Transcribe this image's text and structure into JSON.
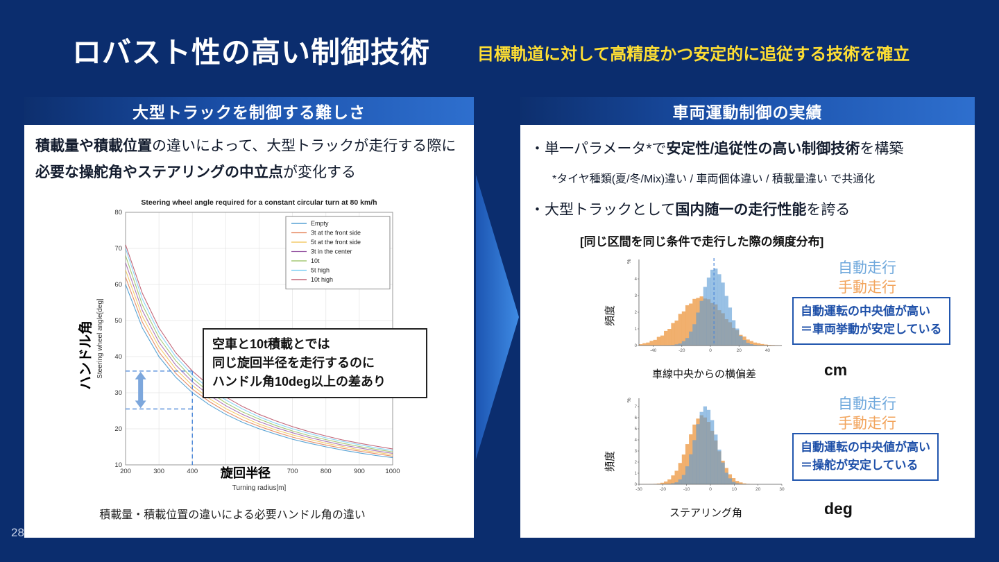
{
  "slide": {
    "title": "ロバスト性の高い制御技術",
    "subtitle": "目標軌道に対して高精度かつ安定的に追従する技術を確立",
    "page_number": "28"
  },
  "colors": {
    "background": "#0b2d6e",
    "header_gradient_start": "#0d2f6e",
    "header_gradient_end": "#2e6fce",
    "subtitle_yellow": "#ffdf33",
    "auto_drive_blue": "#6fa8dc",
    "manual_drive_orange": "#f2a45c",
    "annotation_blue": "#1d4fa8"
  },
  "left_panel": {
    "header": "大型トラックを制御する難しさ",
    "body_segments": [
      {
        "text": "積載量や積載位置",
        "bold": true
      },
      {
        "text": "の違いによって、大型トラックが走行する際に",
        "bold": false
      },
      {
        "text": "必要な操舵角やステアリングの中立点",
        "bold": true
      },
      {
        "text": "が変化する",
        "bold": false
      }
    ],
    "axis_label_y": "ハンドル角",
    "axis_label_x": "旋回半径",
    "annotation_lines": [
      "空車と10t積載とでは",
      "同じ旋回半径を走行するのに",
      "ハンドル角10deg以上の差あり"
    ],
    "caption": "積載量・積載位置の違いによる必要ハンドル角の違い"
  },
  "right_panel": {
    "header": "車両運動制御の実績",
    "bullet1_segments": [
      {
        "text": "・単一パラメータ*で",
        "bold": false
      },
      {
        "text": "安定性/追従性の高い制御技術",
        "bold": true
      },
      {
        "text": "を構築",
        "bold": false
      }
    ],
    "note": "*タイヤ種類(夏/冬/Mix)違い / 車両個体違い / 積載量違い で共通化",
    "bullet2_segments": [
      {
        "text": "・大型トラックとして",
        "bold": false
      },
      {
        "text": "国内随一の走行性能",
        "bold": true
      },
      {
        "text": "を誇る",
        "bold": false
      }
    ],
    "dist_caption": "[同じ区間を同じ条件で走行した際の頻度分布]",
    "legend_auto": "自動走行",
    "legend_manual": "手動走行",
    "freq_label": "頻度",
    "hist1_xlabel": "車線中央からの横偏差",
    "hist1_unit": "cm",
    "hist2_xlabel": "ステアリング角",
    "hist2_unit": "deg",
    "annotation1_lines": [
      "自動運転の中央値が高い",
      "＝車両挙動が安定している"
    ],
    "annotation2_lines": [
      "自動運転の中央値が高い",
      "＝操舵が安定している"
    ]
  },
  "chart_data": [
    {
      "type": "line",
      "title": "Steering wheel angle required for a constant circular turn at 80 km/h",
      "xlabel": "Turning radius[m]",
      "ylabel": "Steering wheel angle[deg]",
      "xlim": [
        200,
        1000
      ],
      "ylim": [
        10,
        80
      ],
      "x_ticks": [
        200,
        300,
        400,
        500,
        600,
        700,
        800,
        900,
        1000
      ],
      "y_ticks": [
        10,
        20,
        30,
        40,
        50,
        60,
        70,
        80
      ],
      "x": [
        200,
        250,
        300,
        350,
        400,
        450,
        500,
        550,
        600,
        650,
        700,
        750,
        800,
        850,
        900,
        950,
        1000
      ],
      "series": [
        {
          "name": "Empty",
          "color": "#0072BD",
          "values": [
            60,
            48,
            40,
            34.3,
            30,
            26.7,
            24,
            21.8,
            20,
            18.5,
            17.1,
            16,
            15,
            14.1,
            13.3,
            12.6,
            12
          ]
        },
        {
          "name": "3t at the front side",
          "color": "#D95319",
          "values": [
            62,
            49.6,
            41.3,
            35.4,
            31,
            27.6,
            24.8,
            22.5,
            20.7,
            19.1,
            17.7,
            16.5,
            15.5,
            14.6,
            13.8,
            13.1,
            12.4
          ]
        },
        {
          "name": "5t at the front side",
          "color": "#EDB120",
          "values": [
            64,
            51.2,
            42.7,
            36.6,
            32,
            28.4,
            25.6,
            23.3,
            21.3,
            19.7,
            18.3,
            17.1,
            16,
            15.1,
            14.2,
            13.5,
            12.8
          ]
        },
        {
          "name": "3t in the center",
          "color": "#7E2F8E",
          "values": [
            66,
            52.8,
            44,
            37.7,
            33,
            29.3,
            26.4,
            24,
            22,
            20.3,
            18.9,
            17.6,
            16.5,
            15.5,
            14.7,
            13.9,
            13.2
          ]
        },
        {
          "name": "10t",
          "color": "#77AC30",
          "values": [
            68,
            54.4,
            45.3,
            38.9,
            34,
            30.2,
            27.2,
            24.7,
            22.7,
            20.9,
            19.4,
            18.1,
            17,
            16,
            15.1,
            14.3,
            13.6
          ]
        },
        {
          "name": "5t high",
          "color": "#4DBEEE",
          "values": [
            70,
            56,
            46.7,
            40,
            35,
            31.1,
            28,
            25.5,
            23.3,
            21.5,
            20,
            18.7,
            17.5,
            16.5,
            15.6,
            14.7,
            14
          ]
        },
        {
          "name": "10t high",
          "color": "#A2142F",
          "values": [
            71,
            57.6,
            48,
            41.1,
            36,
            32,
            28.8,
            26.2,
            24,
            22.2,
            20.6,
            19.2,
            18,
            16.9,
            16,
            15.2,
            14.4
          ]
        }
      ],
      "legend_position": "top-right",
      "grid": true,
      "guides": {
        "radius": 400,
        "angle_high": 36,
        "angle_low": 25.5,
        "arrow_x": 245
      }
    },
    {
      "type": "histogram",
      "xlabel": "車線中央からの横偏差",
      "unit": "cm",
      "ylabel": "%",
      "xlim": [
        -50,
        50
      ],
      "x_ticks": [
        -40,
        -20,
        0,
        20,
        40
      ],
      "ylim": [
        0,
        5
      ],
      "y_ticks": [
        0,
        1,
        2,
        3,
        4
      ],
      "bin_width": 2.5,
      "median_line_x": 2.5,
      "series": [
        {
          "name": "手動走行",
          "color": "#ED9C4A",
          "opacity": 0.8,
          "values": [
            0.08,
            0.14,
            0.18,
            0.28,
            0.34,
            0.52,
            0.6,
            0.88,
            1.0,
            1.35,
            1.5,
            1.9,
            2.05,
            2.42,
            2.52,
            2.8,
            2.86,
            2.95,
            2.82,
            2.78,
            2.55,
            2.47,
            2.12,
            1.94,
            1.58,
            1.4,
            1.05,
            0.92,
            0.64,
            0.54,
            0.36,
            0.27,
            0.18,
            0.14,
            0.09,
            0.06,
            0.04,
            0.03,
            0.02,
            0.01
          ]
        },
        {
          "name": "自動走行",
          "color": "#5B9BD5",
          "opacity": 0.62,
          "values": [
            0,
            0,
            0,
            0,
            0,
            0,
            0,
            0.01,
            0.02,
            0.03,
            0.07,
            0.12,
            0.26,
            0.45,
            0.84,
            1.28,
            1.98,
            2.68,
            3.52,
            4.08,
            4.55,
            4.62,
            4.28,
            3.78,
            2.98,
            2.28,
            1.52,
            1.02,
            0.58,
            0.33,
            0.16,
            0.08,
            0.04,
            0.02,
            0.01,
            0,
            0,
            0,
            0,
            0
          ]
        }
      ]
    },
    {
      "type": "histogram",
      "xlabel": "ステアリング角",
      "unit": "deg",
      "ylabel": "%",
      "xlim": [
        -30,
        30
      ],
      "x_ticks": [
        -30,
        -20,
        -10,
        0,
        10,
        20,
        30
      ],
      "ylim": [
        0,
        7.5
      ],
      "y_ticks": [
        0,
        1,
        2,
        3,
        4,
        5,
        6,
        7
      ],
      "bin_width": 1.5,
      "median_line_x": null,
      "series": [
        {
          "name": "手動走行",
          "color": "#ED9C4A",
          "opacity": 0.8,
          "values": [
            0.01,
            0.02,
            0.02,
            0.03,
            0.04,
            0.07,
            0.14,
            0.25,
            0.44,
            0.8,
            1.22,
            1.92,
            2.68,
            3.62,
            4.5,
            5.38,
            5.92,
            6.22,
            6.02,
            5.62,
            4.82,
            3.95,
            2.98,
            2.12,
            1.47,
            0.9,
            0.56,
            0.3,
            0.17,
            0.08,
            0.04,
            0.02,
            0.01,
            0,
            0,
            0,
            0,
            0,
            0,
            0
          ]
        },
        {
          "name": "自動走行",
          "color": "#5B9BD5",
          "opacity": 0.62,
          "values": [
            0,
            0,
            0,
            0,
            0,
            0,
            0,
            0.02,
            0.04,
            0.09,
            0.18,
            0.44,
            0.84,
            1.62,
            2.7,
            3.98,
            5.42,
            6.52,
            7.02,
            6.7,
            5.78,
            4.48,
            3.12,
            1.96,
            1.04,
            0.54,
            0.22,
            0.09,
            0.03,
            0.01,
            0,
            0,
            0,
            0,
            0,
            0,
            0,
            0,
            0,
            0
          ]
        }
      ]
    }
  ]
}
